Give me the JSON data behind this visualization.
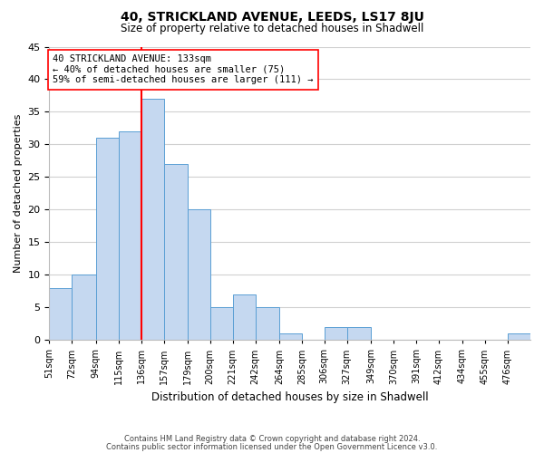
{
  "title": "40, STRICKLAND AVENUE, LEEDS, LS17 8JU",
  "subtitle": "Size of property relative to detached houses in Shadwell",
  "xlabel": "Distribution of detached houses by size in Shadwell",
  "ylabel": "Number of detached properties",
  "bar_values": [
    8,
    10,
    31,
    32,
    37,
    27,
    20,
    5,
    7,
    5,
    1,
    0,
    2,
    2,
    0,
    0,
    0,
    0,
    0,
    0,
    1
  ],
  "bin_starts": [
    51,
    72,
    94,
    115,
    136,
    157,
    179,
    200,
    221,
    242,
    264,
    285,
    306,
    327,
    349,
    370,
    391,
    412,
    434,
    455,
    476
  ],
  "bin_widths": [
    21,
    22,
    21,
    21,
    21,
    22,
    21,
    21,
    21,
    22,
    21,
    21,
    21,
    22,
    21,
    21,
    21,
    22,
    21,
    21,
    21
  ],
  "bin_labels": [
    "51sqm",
    "72sqm",
    "94sqm",
    "115sqm",
    "136sqm",
    "157sqm",
    "179sqm",
    "200sqm",
    "221sqm",
    "242sqm",
    "264sqm",
    "285sqm",
    "306sqm",
    "327sqm",
    "349sqm",
    "370sqm",
    "391sqm",
    "412sqm",
    "434sqm",
    "455sqm",
    "476sqm"
  ],
  "bar_color": "#c5d8f0",
  "bar_edge_color": "#5a9fd4",
  "vline_x": 136,
  "vline_color": "red",
  "annotation_text": "40 STRICKLAND AVENUE: 133sqm\n← 40% of detached houses are smaller (75)\n59% of semi-detached houses are larger (111) →",
  "annotation_box_color": "#ffffff",
  "annotation_box_edge": "red",
  "ylim": [
    0,
    45
  ],
  "yticks": [
    0,
    5,
    10,
    15,
    20,
    25,
    30,
    35,
    40,
    45
  ],
  "footer_line1": "Contains HM Land Registry data © Crown copyright and database right 2024.",
  "footer_line2": "Contains public sector information licensed under the Open Government Licence v3.0.",
  "background_color": "#ffffff",
  "grid_color": "#d0d0d0",
  "title_fontsize": 10,
  "subtitle_fontsize": 8.5,
  "xlabel_fontsize": 8.5,
  "ylabel_fontsize": 8,
  "xtick_fontsize": 7,
  "ytick_fontsize": 8,
  "annotation_fontsize": 7.5,
  "footer_fontsize": 6
}
